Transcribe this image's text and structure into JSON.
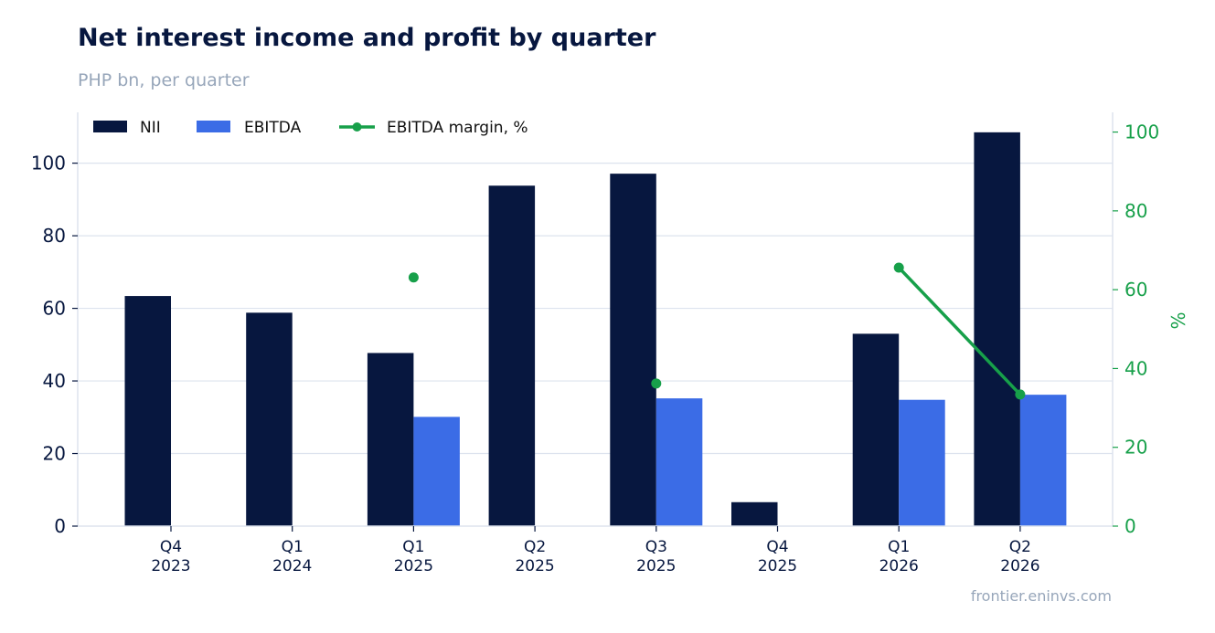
{
  "title": "Net interest income and profit by quarter",
  "subtitle": "PHP bn, per quarter",
  "source": "frontier.eninvs.com",
  "colors": {
    "nii": "#07173f",
    "ebitda": "#3b6ce6",
    "margin": "#17a04a",
    "grid": "#dde3ee",
    "axis_text": "#07173f",
    "right_axis_text": "#17a04a"
  },
  "chart_data": {
    "type": "bar",
    "categories": [
      [
        "Q4",
        "2023"
      ],
      [
        "Q1",
        "2024"
      ],
      [
        "Q1",
        "2025"
      ],
      [
        "Q2",
        "2025"
      ],
      [
        "Q3",
        "2025"
      ],
      [
        "Q4",
        "2025"
      ],
      [
        "Q1",
        "2026"
      ],
      [
        "Q2",
        "2026"
      ]
    ],
    "series": [
      {
        "name": "NII",
        "kind": "bar",
        "axis": "left",
        "values": [
          63.4,
          58.8,
          47.7,
          93.8,
          97.1,
          6.6,
          53.0,
          108.5
        ]
      },
      {
        "name": "EBITDA",
        "kind": "bar",
        "axis": "left",
        "values": [
          null,
          null,
          30.1,
          null,
          35.2,
          null,
          34.8,
          36.2
        ]
      },
      {
        "name": "EBITDA margin, %",
        "kind": "line",
        "axis": "right",
        "values": [
          null,
          null,
          63.1,
          null,
          36.2,
          null,
          65.6,
          33.4
        ]
      }
    ],
    "left_axis": {
      "ylim": [
        0,
        114
      ],
      "ticks": [
        0,
        20,
        40,
        60,
        80,
        100
      ]
    },
    "right_axis": {
      "label": "%",
      "ylim": [
        0,
        105
      ],
      "ticks": [
        0,
        20,
        40,
        60,
        80,
        100
      ]
    },
    "grid": true,
    "legend": "top-left"
  }
}
